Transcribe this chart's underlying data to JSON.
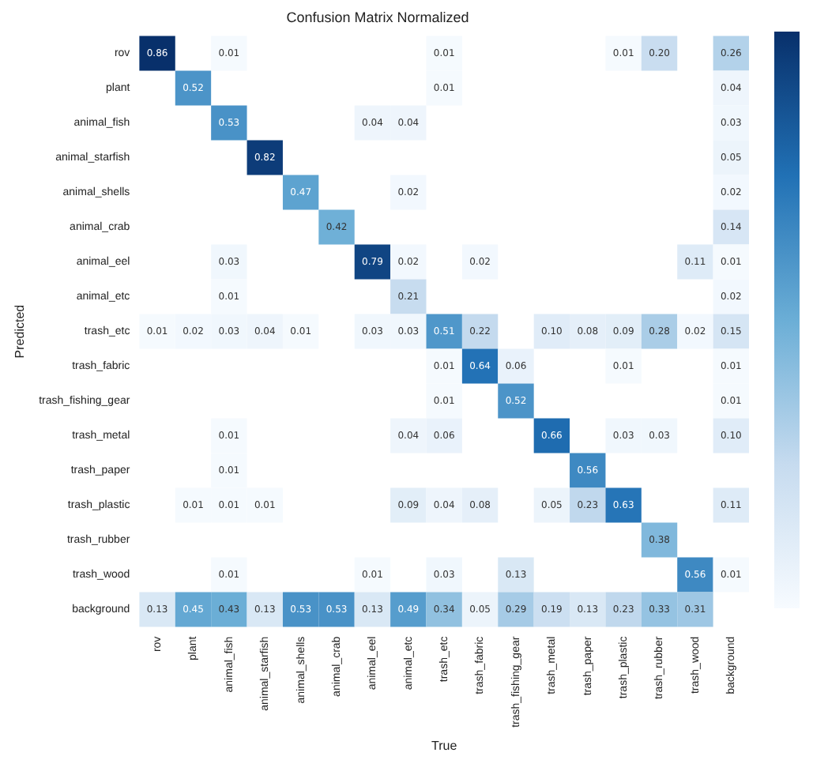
{
  "chart_data": {
    "type": "heatmap",
    "title": "Confusion Matrix Normalized",
    "xlabel": "True",
    "ylabel": "Predicted",
    "categories": [
      "rov",
      "plant",
      "animal_fish",
      "animal_starfish",
      "animal_shells",
      "animal_crab",
      "animal_eel",
      "animal_etc",
      "trash_etc",
      "trash_fabric",
      "trash_fishing_gear",
      "trash_metal",
      "trash_paper",
      "trash_plastic",
      "trash_rubber",
      "trash_wood",
      "background"
    ],
    "y_categories": [
      "rov",
      "plant",
      "animal_fish",
      "animal_starfish",
      "animal_shells",
      "animal_crab",
      "animal_eel",
      "animal_etc",
      "trash_etc",
      "trash_fabric",
      "trash_fishing_gear",
      "trash_metal",
      "trash_paper",
      "trash_plastic",
      "trash_rubber",
      "trash_wood",
      "background"
    ],
    "cells": [
      [
        0.86,
        null,
        0.01,
        null,
        null,
        null,
        null,
        null,
        0.01,
        null,
        null,
        null,
        null,
        0.01,
        0.2,
        null,
        0.26
      ],
      [
        null,
        0.52,
        null,
        null,
        null,
        null,
        null,
        null,
        0.01,
        null,
        null,
        null,
        null,
        null,
        null,
        null,
        0.04
      ],
      [
        null,
        null,
        0.53,
        null,
        null,
        null,
        0.04,
        0.04,
        null,
        null,
        null,
        null,
        null,
        null,
        null,
        null,
        0.03
      ],
      [
        null,
        null,
        null,
        0.82,
        null,
        null,
        null,
        null,
        null,
        null,
        null,
        null,
        null,
        null,
        null,
        null,
        0.05
      ],
      [
        null,
        null,
        null,
        null,
        0.47,
        null,
        null,
        0.02,
        null,
        null,
        null,
        null,
        null,
        null,
        null,
        null,
        0.02
      ],
      [
        null,
        null,
        null,
        null,
        null,
        0.42,
        null,
        null,
        null,
        null,
        null,
        null,
        null,
        null,
        null,
        null,
        0.14
      ],
      [
        null,
        null,
        0.03,
        null,
        null,
        null,
        0.79,
        0.02,
        null,
        0.02,
        null,
        null,
        null,
        null,
        null,
        0.11,
        0.01
      ],
      [
        null,
        null,
        0.01,
        null,
        null,
        null,
        null,
        0.21,
        null,
        null,
        null,
        null,
        null,
        null,
        null,
        null,
        0.02
      ],
      [
        0.01,
        0.02,
        0.03,
        0.04,
        0.01,
        null,
        0.03,
        0.03,
        0.51,
        0.22,
        null,
        0.1,
        0.08,
        0.09,
        0.28,
        0.02,
        0.15
      ],
      [
        null,
        null,
        null,
        null,
        null,
        null,
        null,
        null,
        0.01,
        0.64,
        0.06,
        null,
        null,
        0.01,
        null,
        null,
        0.01
      ],
      [
        null,
        null,
        null,
        null,
        null,
        null,
        null,
        null,
        0.01,
        null,
        0.52,
        null,
        null,
        null,
        null,
        null,
        0.01
      ],
      [
        null,
        null,
        0.01,
        null,
        null,
        null,
        null,
        0.04,
        0.06,
        null,
        null,
        0.66,
        null,
        0.03,
        0.03,
        null,
        0.1
      ],
      [
        null,
        null,
        0.01,
        null,
        null,
        null,
        null,
        null,
        null,
        null,
        null,
        null,
        0.56,
        null,
        null,
        null,
        null
      ],
      [
        null,
        0.01,
        0.01,
        0.01,
        null,
        null,
        null,
        0.09,
        0.04,
        0.08,
        null,
        0.05,
        0.23,
        0.63,
        null,
        null,
        0.11
      ],
      [
        null,
        null,
        null,
        null,
        null,
        null,
        null,
        null,
        null,
        null,
        null,
        null,
        null,
        null,
        0.38,
        null,
        null
      ],
      [
        null,
        null,
        0.01,
        null,
        null,
        null,
        0.01,
        null,
        0.03,
        null,
        0.13,
        null,
        null,
        null,
        null,
        0.56,
        0.01
      ],
      [
        0.13,
        0.45,
        0.43,
        0.13,
        0.53,
        0.53,
        0.13,
        0.49,
        0.34,
        0.05,
        0.29,
        0.19,
        0.13,
        0.23,
        0.33,
        0.31,
        null
      ]
    ],
    "cell_labels": [
      [
        "0.86",
        null,
        "0.01",
        null,
        null,
        null,
        null,
        null,
        "0.01",
        null,
        null,
        null,
        null,
        "0.01",
        "0.20",
        null,
        "0.26"
      ],
      [
        null,
        "0.52",
        null,
        null,
        null,
        null,
        null,
        null,
        "0.01",
        null,
        null,
        null,
        null,
        null,
        null,
        null,
        "0.04"
      ],
      [
        null,
        null,
        "0.53",
        null,
        null,
        null,
        "0.04",
        "0.04",
        null,
        null,
        null,
        null,
        null,
        null,
        null,
        null,
        "0.03"
      ],
      [
        null,
        null,
        null,
        "0.82",
        null,
        null,
        null,
        null,
        null,
        null,
        null,
        null,
        null,
        null,
        null,
        null,
        "0.05"
      ],
      [
        null,
        null,
        null,
        null,
        "0.47",
        null,
        null,
        "0.02",
        null,
        null,
        null,
        null,
        null,
        null,
        null,
        null,
        "0.02"
      ],
      [
        null,
        null,
        null,
        null,
        null,
        "0.42",
        null,
        null,
        null,
        null,
        null,
        null,
        null,
        null,
        null,
        null,
        "0.14"
      ],
      [
        null,
        null,
        "0.03",
        null,
        null,
        null,
        "0.79",
        "0.02",
        null,
        "0.02",
        null,
        null,
        null,
        null,
        null,
        "0.11",
        "0.01"
      ],
      [
        null,
        null,
        "0.01",
        null,
        null,
        null,
        null,
        "0.21",
        null,
        null,
        null,
        null,
        null,
        null,
        null,
        null,
        "0.02"
      ],
      [
        "0.01",
        "0.02",
        "0.03",
        "0.04",
        "0.01",
        null,
        "0.03",
        "0.03",
        "0.51",
        "0.22",
        null,
        "0.10",
        "0.08",
        "0.09",
        "0.28",
        "0.02",
        "0.15"
      ],
      [
        null,
        null,
        null,
        null,
        null,
        null,
        null,
        null,
        "0.01",
        "0.64",
        "0.06",
        null,
        null,
        "0.01",
        null,
        null,
        "0.01"
      ],
      [
        null,
        null,
        null,
        null,
        null,
        null,
        null,
        null,
        "0.01",
        null,
        "0.52",
        null,
        null,
        null,
        null,
        null,
        "0.01"
      ],
      [
        null,
        null,
        "0.01",
        null,
        null,
        null,
        null,
        "0.04",
        "0.06",
        null,
        null,
        "0.66",
        null,
        "0.03",
        "0.03",
        null,
        "0.10"
      ],
      [
        null,
        null,
        "0.01",
        null,
        null,
        null,
        null,
        null,
        null,
        null,
        null,
        null,
        "0.56",
        null,
        null,
        null,
        null
      ],
      [
        null,
        "0.01",
        "0.01",
        "0.01",
        null,
        null,
        null,
        "0.09",
        "0.04",
        "0.08",
        null,
        "0.05",
        "0.23",
        "0.63",
        null,
        null,
        "0.11"
      ],
      [
        null,
        null,
        null,
        null,
        null,
        null,
        null,
        null,
        null,
        null,
        null,
        null,
        null,
        null,
        "0.38",
        null,
        null
      ],
      [
        null,
        null,
        "0.01",
        null,
        null,
        null,
        "0.01",
        null,
        "0.03",
        null,
        "0.13",
        null,
        null,
        null,
        null,
        "0.56",
        "0.01"
      ],
      [
        "0.13",
        "0.45",
        "0.43",
        "0.13",
        "0.53",
        "0.53",
        "0.13",
        "0.49",
        "0.34",
        "0.05",
        "0.29",
        "0.19",
        "0.13",
        "0.23",
        "0.33",
        "0.31",
        null
      ]
    ],
    "data_labels": true
  }
}
